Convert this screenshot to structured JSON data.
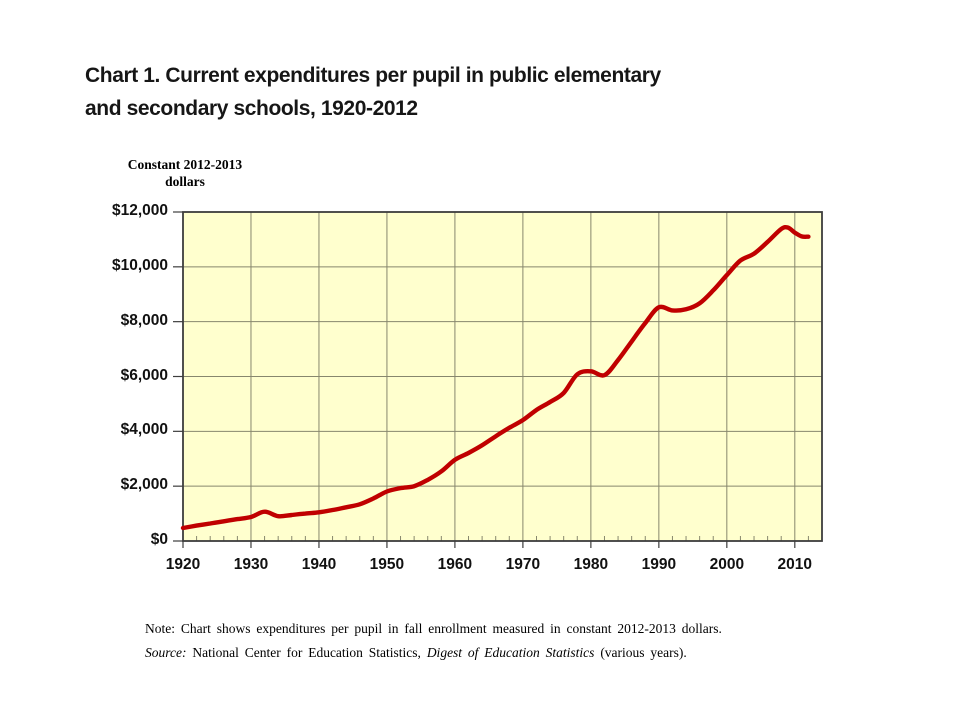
{
  "page": {
    "title_line1": "Chart 1. Current expenditures per pupil in public elementary",
    "title_line2": "and secondary schools, 1920-2012"
  },
  "notes": {
    "note_line": "Note:  Chart shows expenditures per pupil in fall enrollment measured in constant 2012-2013 dollars.",
    "source_label": "Source:",
    "source_text_1": "  National Center for Education Statistics,  ",
    "source_title_italic": "Digest of Education Statistics",
    "source_text_2": " (various years)."
  },
  "chart_data": {
    "type": "line",
    "title": "Chart 1. Current expenditures per pupil in public elementary and secondary schools, 1920-2012",
    "ylabel": "Constant 2012-2013 dollars",
    "unit_label_lines": [
      "Constant 2012-2013",
      "dollars"
    ],
    "xlabel": "",
    "x": [
      1920,
      1922,
      1924,
      1926,
      1928,
      1930,
      1932,
      1934,
      1936,
      1938,
      1940,
      1942,
      1944,
      1946,
      1948,
      1950,
      1952,
      1954,
      1956,
      1958,
      1960,
      1962,
      1964,
      1966,
      1968,
      1970,
      1972,
      1974,
      1976,
      1978,
      1980,
      1982,
      1984,
      1986,
      1988,
      1990,
      1992,
      1994,
      1996,
      1998,
      2000,
      2002,
      2004,
      2006,
      2008,
      2009,
      2010,
      2011,
      2012
    ],
    "values": [
      475,
      560,
      640,
      720,
      800,
      875,
      1070,
      905,
      950,
      1000,
      1045,
      1130,
      1230,
      1340,
      1550,
      1805,
      1930,
      2000,
      2230,
      2540,
      2960,
      3210,
      3490,
      3820,
      4130,
      4410,
      4780,
      5070,
      5400,
      6080,
      6190,
      6050,
      6600,
      7280,
      7950,
      8525,
      8410,
      8450,
      8670,
      9140,
      9700,
      10230,
      10480,
      10910,
      11380,
      11430,
      11250,
      11110,
      11100
    ],
    "xlim": [
      1920,
      2014
    ],
    "ylim": [
      0,
      12000
    ],
    "xtick_values": [
      1920,
      1930,
      1940,
      1950,
      1960,
      1970,
      1980,
      1990,
      2000,
      2010
    ],
    "xtick_labels": [
      "1920",
      "1930",
      "1940",
      "1950",
      "1960",
      "1970",
      "1980",
      "1990",
      "2000",
      "2010"
    ],
    "xtick_minor_step": 2,
    "ytick_values": [
      0,
      2000,
      4000,
      6000,
      8000,
      10000,
      12000
    ],
    "ytick_labels": [
      "$0",
      "$2,000",
      "$4,000",
      "$6,000",
      "$8,000",
      "$10,000",
      "$12,000"
    ],
    "grid": true,
    "legend": "none",
    "colors": {
      "line": "#C00000",
      "plot_bg": "#FFFFCE",
      "grid": "#87876D",
      "border": "#3D3D3D",
      "tick": "#3D3D3D"
    }
  }
}
